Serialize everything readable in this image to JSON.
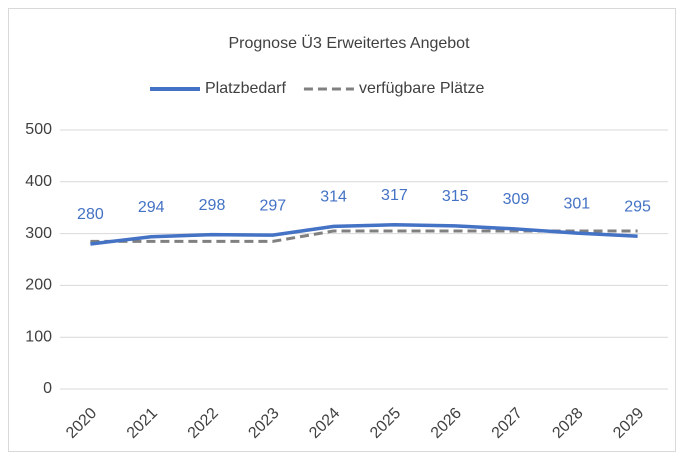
{
  "chart_data": {
    "type": "line",
    "title": "Prognose Ü3 Erweitertes Angebot",
    "categories": [
      "2020",
      "2021",
      "2022",
      "2023",
      "2024",
      "2025",
      "2026",
      "2027",
      "2028",
      "2029"
    ],
    "series": [
      {
        "name": "Platzbedarf",
        "color": "#4472c4",
        "dash": false,
        "values": [
          280,
          294,
          298,
          297,
          314,
          317,
          315,
          309,
          301,
          295
        ],
        "data_labels": true
      },
      {
        "name": "verfügbare Plätze",
        "color": "#808080",
        "dash": true,
        "values": [
          285,
          285,
          285,
          285,
          305,
          305,
          305,
          305,
          305,
          305
        ],
        "data_labels": false
      }
    ],
    "ylim": [
      0,
      500
    ],
    "yticks": [
      0,
      100,
      200,
      300,
      400,
      500
    ],
    "grid": true,
    "legend": "top"
  }
}
